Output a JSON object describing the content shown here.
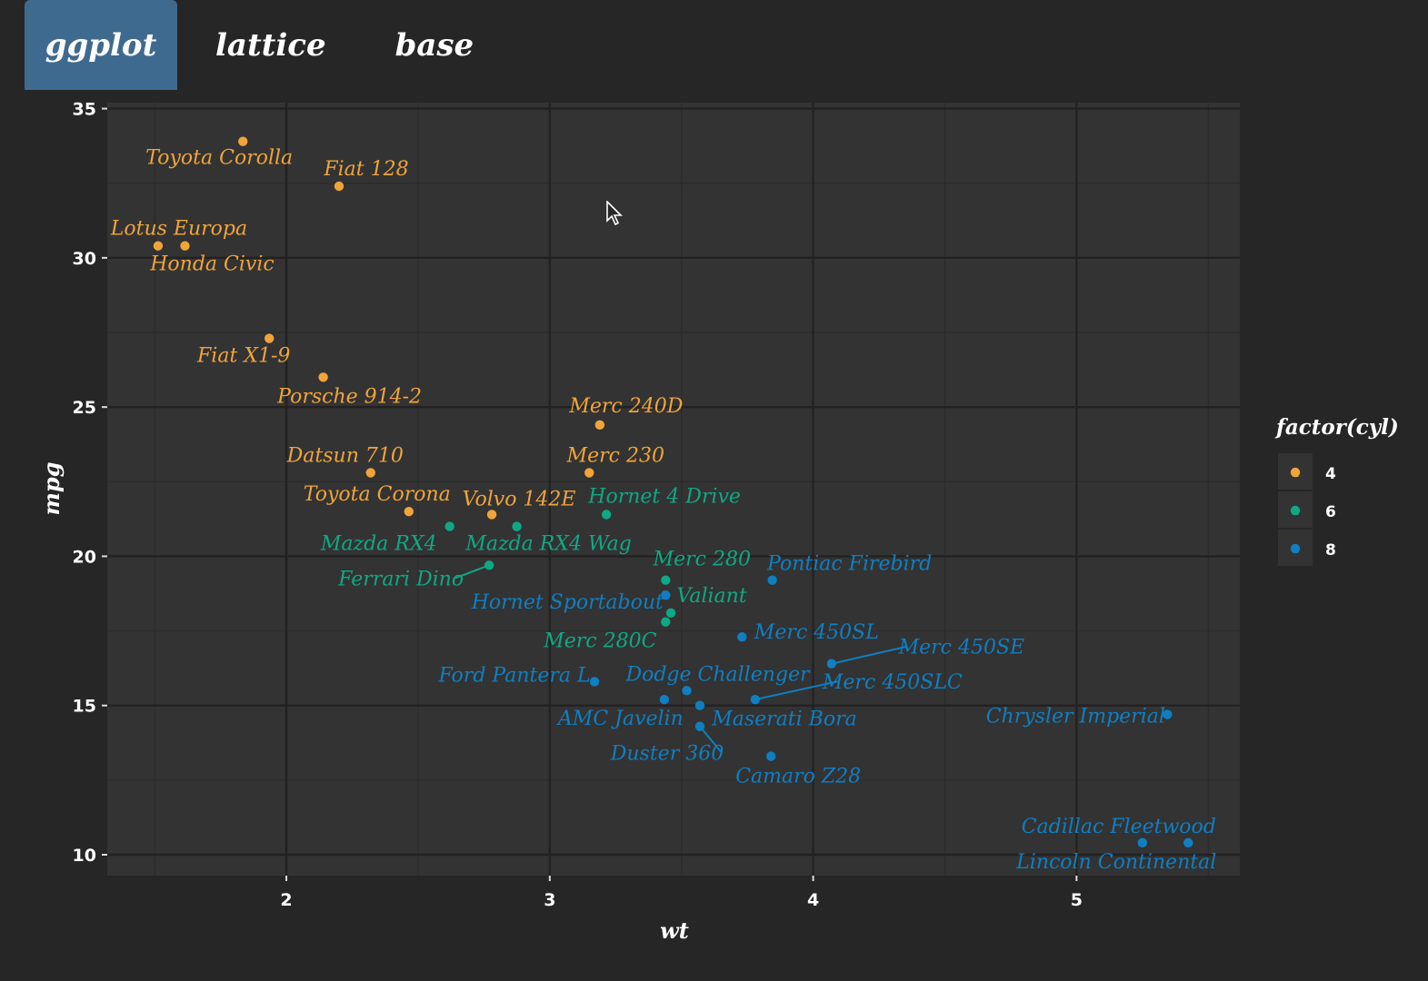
{
  "tabs": [
    {
      "label": "ggplot",
      "active": true
    },
    {
      "label": "lattice",
      "active": false
    },
    {
      "label": "base",
      "active": false
    }
  ],
  "colors": {
    "background": "#262626",
    "panel": "#333333",
    "grid_major": "#222222",
    "grid_minor": "#2c2c2c",
    "tab_active": "#3f6a90",
    "text": "#ffffff",
    "cyl_4": "#f0a43a",
    "cyl_6": "#0fa884",
    "cyl_8": "#0f7fc2"
  },
  "chart_data": {
    "type": "scatter",
    "xlabel": "wt",
    "ylabel": "mpg",
    "xlim": [
      1.32,
      5.62
    ],
    "ylim": [
      9.3,
      35.2
    ],
    "x_ticks": [
      2,
      3,
      4,
      5
    ],
    "y_ticks": [
      10,
      15,
      20,
      25,
      30,
      35
    ],
    "x_tick_labels": [
      "2",
      "3",
      "4",
      "5"
    ],
    "y_tick_labels": [
      "10",
      "15",
      "20",
      "25",
      "30",
      "35"
    ],
    "grid": true,
    "legend": {
      "title": "factor(cyl)",
      "position": "right",
      "entries": [
        {
          "label": "4",
          "color": "#f0a43a"
        },
        {
          "label": "6",
          "color": "#0fa884"
        },
        {
          "label": "8",
          "color": "#0f7fc2"
        }
      ]
    },
    "series": [
      {
        "name": "4",
        "color": "#f0a43a",
        "points": [
          {
            "label": "Toyota Corolla",
            "x": 1.835,
            "y": 33.9
          },
          {
            "label": "Fiat 128",
            "x": 2.2,
            "y": 32.4
          },
          {
            "label": "Lotus Europa",
            "x": 1.513,
            "y": 30.4
          },
          {
            "label": "Honda Civic",
            "x": 1.615,
            "y": 30.4
          },
          {
            "label": "Fiat X1-9",
            "x": 1.935,
            "y": 27.3
          },
          {
            "label": "Porsche 914-2",
            "x": 2.14,
            "y": 26.0
          },
          {
            "label": "Merc 240D",
            "x": 3.19,
            "y": 24.4
          },
          {
            "label": "Merc 230",
            "x": 3.15,
            "y": 22.8
          },
          {
            "label": "Datsun 710",
            "x": 2.32,
            "y": 22.8
          },
          {
            "label": "Toyota Corona",
            "x": 2.465,
            "y": 21.5
          },
          {
            "label": "Volvo 142E",
            "x": 2.78,
            "y": 21.4
          }
        ]
      },
      {
        "name": "6",
        "color": "#0fa884",
        "points": [
          {
            "label": "Hornet 4 Drive",
            "x": 3.215,
            "y": 21.4
          },
          {
            "label": "Mazda RX4",
            "x": 2.62,
            "y": 21.0
          },
          {
            "label": "Mazda RX4 Wag",
            "x": 2.875,
            "y": 21.0
          },
          {
            "label": "Ferrari Dino",
            "x": 2.77,
            "y": 19.7
          },
          {
            "label": "Merc 280",
            "x": 3.44,
            "y": 19.2
          },
          {
            "label": "Valiant",
            "x": 3.46,
            "y": 18.1
          },
          {
            "label": "Merc 280C",
            "x": 3.44,
            "y": 17.8
          }
        ]
      },
      {
        "name": "8",
        "color": "#0f7fc2",
        "points": [
          {
            "label": "Pontiac Firebird",
            "x": 3.845,
            "y": 19.2
          },
          {
            "label": "Hornet Sportabout",
            "x": 3.44,
            "y": 18.7
          },
          {
            "label": "Merc 450SL",
            "x": 3.73,
            "y": 17.3
          },
          {
            "label": "Merc 450SE",
            "x": 4.07,
            "y": 16.4
          },
          {
            "label": "Ford Pantera L",
            "x": 3.17,
            "y": 15.8
          },
          {
            "label": "Dodge Challenger",
            "x": 3.52,
            "y": 15.5
          },
          {
            "label": "Merc 450SLC",
            "x": 3.78,
            "y": 15.2
          },
          {
            "label": "AMC Javelin",
            "x": 3.435,
            "y": 15.2
          },
          {
            "label": "Maserati Bora",
            "x": 3.57,
            "y": 15.0
          },
          {
            "label": "Chrysler Imperial",
            "x": 5.345,
            "y": 14.7
          },
          {
            "label": "Duster 360",
            "x": 3.57,
            "y": 14.3
          },
          {
            "label": "Camaro Z28",
            "x": 3.84,
            "y": 13.3
          },
          {
            "label": "Cadillac Fleetwood",
            "x": 5.25,
            "y": 10.4
          },
          {
            "label": "Lincoln Continental",
            "x": 5.424,
            "y": 10.4
          }
        ]
      }
    ]
  }
}
